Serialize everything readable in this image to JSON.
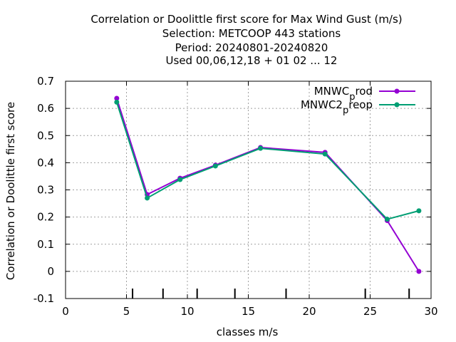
{
  "chart_data": {
    "type": "line",
    "title": [
      "Correlation or Doolittle first score  for Max Wind Gust (m/s)",
      "Selection: METCOOP    443 stations",
      "Period: 20240801-20240820",
      "Used  00,06,12,18 + 01 02 ... 12"
    ],
    "xlabel": "classes m/s",
    "ylabel": "Correlation or Doolittle first score",
    "xlim": [
      0,
      30
    ],
    "ylim": [
      -0.1,
      0.7
    ],
    "x_ticks": [
      "0",
      "5",
      "10",
      "15",
      "20",
      "25",
      "30"
    ],
    "y_ticks": [
      "-0.1",
      "0",
      "0.1",
      "0.2",
      "0.3",
      "0.4",
      "0.5",
      "0.6",
      "0.7"
    ],
    "grid": true,
    "legend_position": "top-right",
    "class_boundaries": [
      5.5,
      8.0,
      10.8,
      13.9,
      18.1,
      24.6,
      28.2
    ],
    "series": [
      {
        "name_parts": [
          "MNWC",
          "p",
          "rod"
        ],
        "color": "#9400d3",
        "marker": "filled-circle",
        "x": [
          4.2,
          6.7,
          9.4,
          12.3,
          16.0,
          21.3,
          26.4,
          29.0
        ],
        "values": [
          0.637,
          0.283,
          0.343,
          0.391,
          0.456,
          0.438,
          0.187,
          0.0
        ]
      },
      {
        "name_parts": [
          "MNWC2",
          "p",
          "reop"
        ],
        "color": "#009e73",
        "marker": "filled-circle",
        "x": [
          4.2,
          6.7,
          9.4,
          12.3,
          16.0,
          21.3,
          26.4,
          29.0
        ],
        "values": [
          0.623,
          0.27,
          0.338,
          0.388,
          0.453,
          0.432,
          0.192,
          0.223
        ]
      }
    ]
  }
}
